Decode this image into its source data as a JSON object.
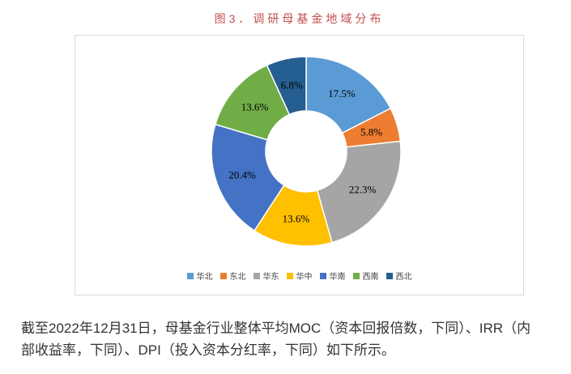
{
  "page": {
    "background_color": "#FFFFFF"
  },
  "figure": {
    "title": "图3．调研母基金地域分布",
    "title_color": "#C0504D"
  },
  "chart_data": {
    "type": "pie",
    "subtype": "donut",
    "title": "图3．调研母基金地域分布",
    "categories": [
      "华北",
      "东北",
      "华东",
      "华中",
      "华南",
      "西南",
      "西北"
    ],
    "values": [
      17.5,
      5.8,
      22.3,
      13.6,
      20.4,
      13.6,
      6.8
    ],
    "data_labels": [
      "17.5%",
      "5.8%",
      "22.3%",
      "13.6%",
      "20.4%",
      "13.6%",
      "6.8%"
    ],
    "colors": [
      "#5B9BD5",
      "#ED7D31",
      "#A5A5A5",
      "#FFC000",
      "#4472C4",
      "#70AD47",
      "#255E91"
    ],
    "start_angle_deg": 0,
    "direction": "clockwise",
    "hole_ratio": 0.43,
    "legend_position": "bottom",
    "panel_border_color": "#D9D9D9"
  },
  "paragraph": {
    "lines": [
      "截至2022年12月31日，母基金行业整体平均MOC（资本回报倍数，下同）、IRR（内",
      "部收益率，下同）、DPI（投入资本分红率，下同）如下所示。"
    ],
    "full_text": "截至2022年12月31日，母基金行业整体平均MOC（资本回报倍数，下同）、IRR（内部收益率，下同）、DPI（投入资本分红率，下同）如下所示。"
  }
}
